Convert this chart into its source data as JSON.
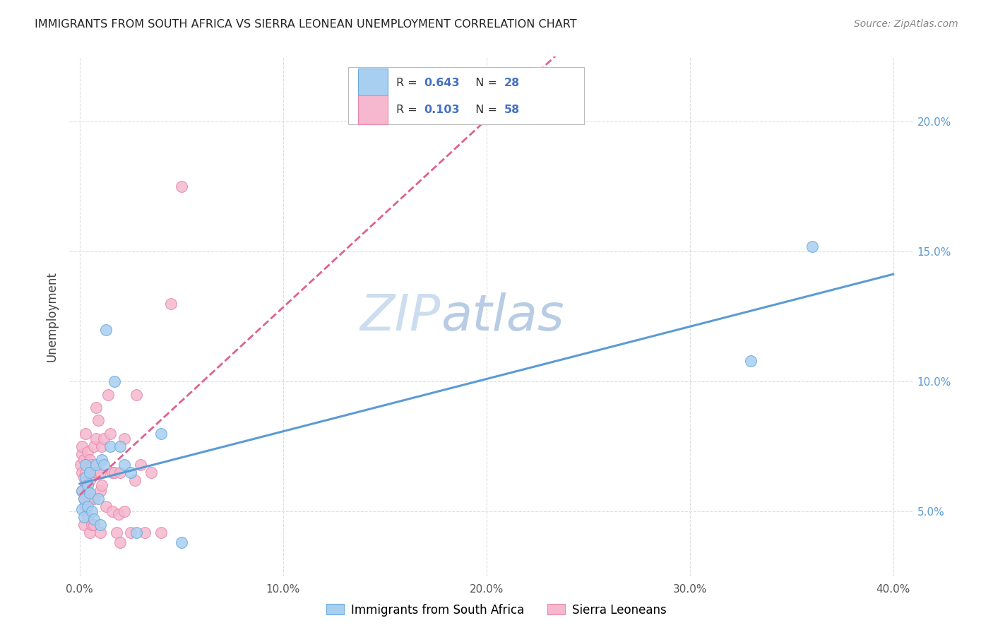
{
  "title": "IMMIGRANTS FROM SOUTH AFRICA VS SIERRA LEONEAN UNEMPLOYMENT CORRELATION CHART",
  "source": "Source: ZipAtlas.com",
  "ylabel": "Unemployment",
  "x_ticks": [
    0.0,
    0.1,
    0.2,
    0.3,
    0.4
  ],
  "x_tick_labels": [
    "0.0%",
    "10.0%",
    "20.0%",
    "30.0%",
    "40.0%"
  ],
  "y_ticks": [
    0.05,
    0.1,
    0.15,
    0.2
  ],
  "y_tick_labels": [
    "5.0%",
    "10.0%",
    "15.0%",
    "20.0%"
  ],
  "xlim": [
    -0.005,
    0.41
  ],
  "ylim": [
    0.025,
    0.225
  ],
  "series1_label": "Immigrants from South Africa",
  "series1_R": "0.643",
  "series1_N": "28",
  "series1_color": "#a8cff0",
  "series1_edge_color": "#6aaade",
  "series1_line_color": "#5b9bd5",
  "series2_label": "Sierra Leoneans",
  "series2_R": "0.103",
  "series2_N": "58",
  "series2_color": "#f5b8ce",
  "series2_edge_color": "#e888aa",
  "series2_line_color": "#e06090",
  "legend_text_color": "#333333",
  "legend_value_color": "#4472c4",
  "watermark_zip": "ZIP",
  "watermark_atlas": "atlas",
  "watermark_color_zip": "#c8ddf0",
  "watermark_color_atlas": "#b0cce8",
  "background_color": "#ffffff",
  "grid_color": "#dddddd",
  "series1_x": [
    0.001,
    0.001,
    0.002,
    0.002,
    0.003,
    0.003,
    0.004,
    0.004,
    0.005,
    0.005,
    0.006,
    0.007,
    0.008,
    0.009,
    0.01,
    0.011,
    0.012,
    0.013,
    0.015,
    0.017,
    0.02,
    0.022,
    0.025,
    0.028,
    0.04,
    0.05,
    0.33,
    0.36
  ],
  "series1_y": [
    0.051,
    0.058,
    0.048,
    0.055,
    0.063,
    0.068,
    0.052,
    0.06,
    0.057,
    0.065,
    0.05,
    0.047,
    0.068,
    0.055,
    0.045,
    0.07,
    0.068,
    0.12,
    0.075,
    0.1,
    0.075,
    0.068,
    0.065,
    0.042,
    0.08,
    0.038,
    0.108,
    0.152
  ],
  "series2_x": [
    0.0005,
    0.001,
    0.001,
    0.001,
    0.001,
    0.002,
    0.002,
    0.002,
    0.002,
    0.003,
    0.003,
    0.003,
    0.003,
    0.003,
    0.004,
    0.004,
    0.004,
    0.005,
    0.005,
    0.005,
    0.005,
    0.006,
    0.006,
    0.007,
    0.007,
    0.007,
    0.008,
    0.008,
    0.008,
    0.009,
    0.009,
    0.01,
    0.01,
    0.01,
    0.011,
    0.011,
    0.012,
    0.013,
    0.014,
    0.015,
    0.016,
    0.016,
    0.017,
    0.018,
    0.019,
    0.02,
    0.02,
    0.022,
    0.022,
    0.025,
    0.027,
    0.028,
    0.03,
    0.032,
    0.035,
    0.04,
    0.045,
    0.05
  ],
  "series2_y": [
    0.068,
    0.072,
    0.065,
    0.058,
    0.075,
    0.063,
    0.07,
    0.055,
    0.045,
    0.052,
    0.08,
    0.06,
    0.055,
    0.065,
    0.073,
    0.058,
    0.048,
    0.07,
    0.062,
    0.055,
    0.042,
    0.068,
    0.045,
    0.075,
    0.055,
    0.045,
    0.09,
    0.065,
    0.078,
    0.065,
    0.085,
    0.058,
    0.065,
    0.042,
    0.075,
    0.06,
    0.078,
    0.052,
    0.095,
    0.08,
    0.065,
    0.05,
    0.065,
    0.042,
    0.049,
    0.038,
    0.065,
    0.078,
    0.05,
    0.042,
    0.062,
    0.095,
    0.068,
    0.042,
    0.065,
    0.042,
    0.13,
    0.175
  ],
  "legend_R_label": "R = ",
  "legend_N_label": "N = "
}
